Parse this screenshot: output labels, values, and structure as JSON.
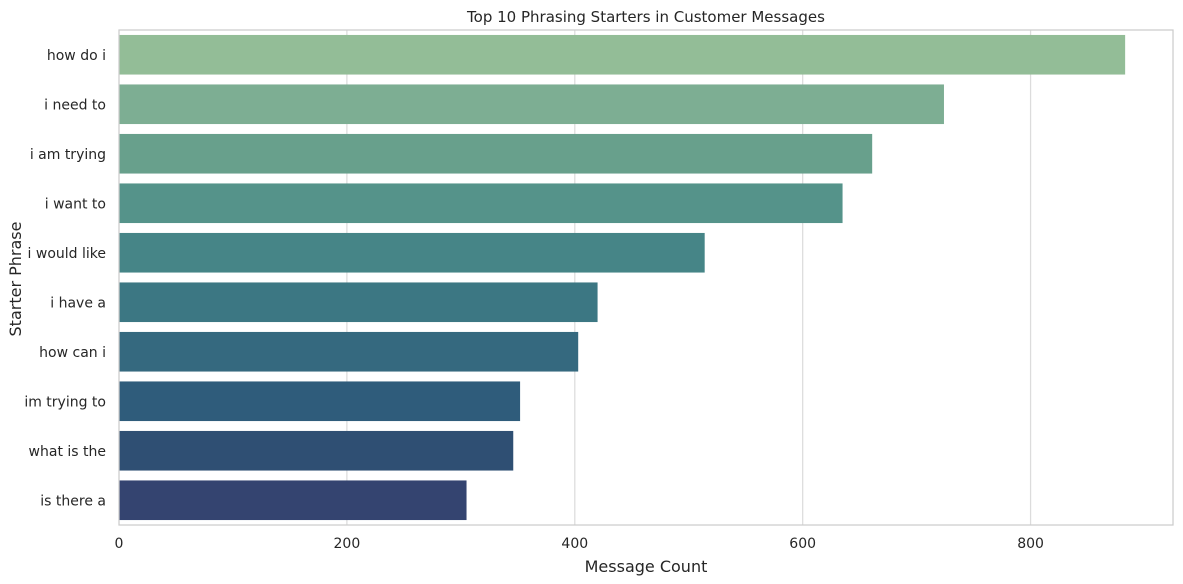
{
  "chart_data": {
    "type": "bar",
    "orientation": "horizontal",
    "title": "Top 10 Phrasing Starters in Customer Messages",
    "xlabel": "Message Count",
    "ylabel": "Starter Phrase",
    "categories": [
      "how do i",
      "i need to",
      "i am trying",
      "i want to",
      "i would like",
      "i have a",
      "how can i",
      "im trying to",
      "what is the",
      "is there a"
    ],
    "values": [
      883,
      724,
      661,
      635,
      514,
      420,
      403,
      352,
      346,
      305
    ],
    "xlim": [
      0,
      925
    ],
    "xticks": [
      0,
      200,
      400,
      600,
      800
    ],
    "xtick_labels": [
      "0",
      "200",
      "400",
      "600",
      "800"
    ],
    "grid": "vertical",
    "colors": [
      "#93bd97",
      "#7dae93",
      "#68a08c",
      "#55938a",
      "#468587",
      "#3c7783",
      "#35697f",
      "#2f5c7b",
      "#2f4f73",
      "#344470"
    ]
  }
}
